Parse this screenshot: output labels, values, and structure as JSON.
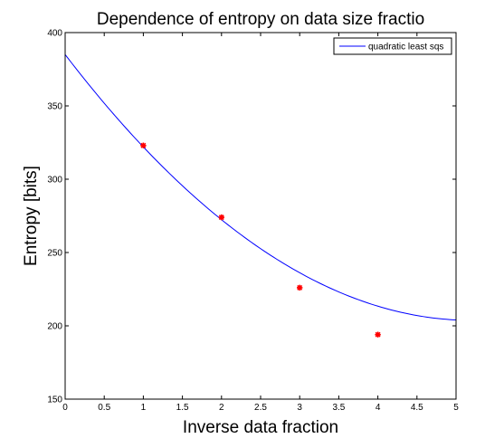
{
  "chart_data": {
    "type": "line",
    "title": "Dependence of entropy on data size fractio",
    "xlabel": "Inverse data fraction",
    "ylabel": "Entropy [bits]",
    "xlim": [
      0,
      5
    ],
    "ylim": [
      150,
      400
    ],
    "xticks": [
      0,
      0.5,
      1,
      1.5,
      2,
      2.5,
      3,
      3.5,
      4,
      4.5,
      5
    ],
    "xtick_labels": [
      "0",
      "0.5",
      "1",
      "1.5",
      "2",
      "2.5",
      "3",
      "3.5",
      "4",
      "4.5",
      "5"
    ],
    "yticks": [
      150,
      200,
      250,
      300,
      350,
      400
    ],
    "ytick_labels": [
      "150",
      "200",
      "250",
      "300",
      "350",
      "400"
    ],
    "grid": false,
    "legend_position": "top-right",
    "series": [
      {
        "name": "quadratic least sqs",
        "type": "line",
        "color": "#0000ff",
        "fit_coefficients": [
          385,
          -69.7,
          6.7
        ],
        "x_range": [
          0,
          5
        ]
      },
      {
        "type": "scatter",
        "color": "#ff0000",
        "x": [
          1,
          2,
          3,
          4
        ],
        "y": [
          323,
          274,
          226,
          194
        ]
      }
    ]
  }
}
